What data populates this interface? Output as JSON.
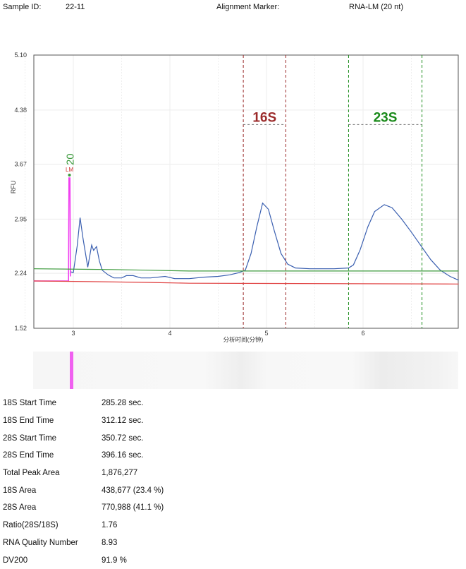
{
  "header": {
    "sample_id_label": "Sample ID:",
    "sample_id": "22-11",
    "marker_label": "Alignment Marker:",
    "marker": "RNA-LM (20 nt)"
  },
  "chart_data": {
    "type": "line",
    "ylabel": "RFU",
    "xlabel": "分析时间(分钟)",
    "ylim": [
      1.52,
      5.1
    ],
    "xlim": [
      2.59,
      6.99
    ],
    "yticks": [
      "1.52",
      "2.24",
      "2.95",
      "3.67",
      "4.38",
      "5.10"
    ],
    "xticks": [
      "3",
      "4",
      "5",
      "6"
    ],
    "grid": true,
    "marker_label": "LM",
    "marker_size": "20",
    "regions": [
      {
        "label": "16S",
        "start": 4.76,
        "end": 5.2,
        "color": "#9b2a2a"
      },
      {
        "label": "23S",
        "start": 5.85,
        "end": 6.61,
        "color": "#1a8a1a"
      }
    ],
    "series": [
      {
        "name": "signal",
        "color": "#3a5fb0",
        "x": [
          2.97,
          3.0,
          3.04,
          3.07,
          3.1,
          3.15,
          3.19,
          3.21,
          3.24,
          3.27,
          3.3,
          3.36,
          3.42,
          3.5,
          3.55,
          3.62,
          3.7,
          3.8,
          3.95,
          4.05,
          4.2,
          4.35,
          4.5,
          4.62,
          4.72,
          4.78,
          4.84,
          4.9,
          4.96,
          5.02,
          5.08,
          5.15,
          5.22,
          5.3,
          5.45,
          5.7,
          5.85,
          5.9,
          5.97,
          6.05,
          6.12,
          6.22,
          6.3,
          6.4,
          6.5,
          6.6,
          6.7,
          6.8,
          6.9,
          6.99
        ],
        "y": [
          2.26,
          2.25,
          2.6,
          2.97,
          2.7,
          2.32,
          2.61,
          2.54,
          2.59,
          2.4,
          2.28,
          2.22,
          2.18,
          2.18,
          2.21,
          2.21,
          2.18,
          2.18,
          2.2,
          2.17,
          2.17,
          2.19,
          2.2,
          2.22,
          2.25,
          2.28,
          2.5,
          2.85,
          3.16,
          3.08,
          2.8,
          2.5,
          2.36,
          2.31,
          2.3,
          2.3,
          2.31,
          2.35,
          2.55,
          2.85,
          3.05,
          3.14,
          3.1,
          2.95,
          2.78,
          2.6,
          2.42,
          2.28,
          2.2,
          2.15
        ]
      },
      {
        "name": "marker",
        "color": "#f040f0",
        "x": [
          2.59,
          2.95,
          2.955,
          2.965,
          2.97
        ],
        "y": [
          2.14,
          2.14,
          3.49,
          3.49,
          2.2
        ]
      },
      {
        "name": "baseline-upper",
        "color": "#3c9a3c",
        "x": [
          2.59,
          3.4,
          3.8,
          4.2,
          6.99
        ],
        "y": [
          2.3,
          2.29,
          2.28,
          2.27,
          2.27
        ]
      },
      {
        "name": "baseline-lower",
        "color": "#e04040",
        "x": [
          2.59,
          3.3,
          3.8,
          4.2,
          6.99
        ],
        "y": [
          2.14,
          2.13,
          2.12,
          2.11,
          2.1
        ]
      }
    ]
  },
  "results": [
    {
      "label": "18S Start Time",
      "value": "285.28 sec."
    },
    {
      "label": "18S End Time",
      "value": "312.12 sec."
    },
    {
      "label": "28S Start Time",
      "value": "350.72 sec."
    },
    {
      "label": "28S End Time",
      "value": "396.16 sec."
    },
    {
      "label": "Total Peak Area",
      "value": "1,876,277"
    },
    {
      "label": "18S Area",
      "value": "438,677 (23.4 %)"
    },
    {
      "label": "28S Area",
      "value": "770,988 (41.1 %)"
    },
    {
      "label": "Ratio(28S/18S)",
      "value": "1.76"
    },
    {
      "label": "RNA Quality Number",
      "value": "8.93"
    },
    {
      "label": "DV200",
      "value": "91.9 %"
    }
  ]
}
